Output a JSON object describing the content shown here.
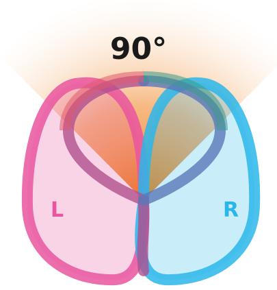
{
  "angle_label": "90°",
  "left_label": "L",
  "right_label": "R",
  "colors": {
    "left": "#e9559f",
    "right": "#2bb6ea",
    "wedge": "#f08a1e",
    "text": "#1a1a1a"
  }
}
